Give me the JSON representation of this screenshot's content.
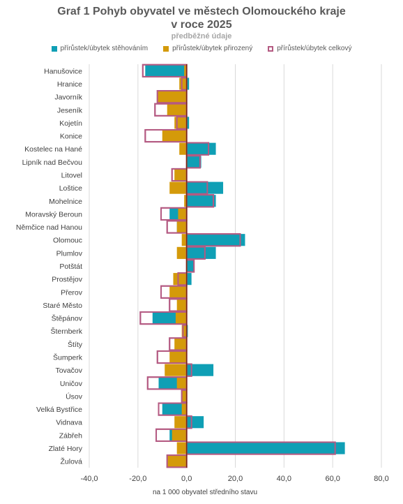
{
  "chart_data": {
    "type": "bar",
    "orientation": "horizontal",
    "title_line1": "Graf 1 Pohyb obyvatel ve městech Olomouckého kraje",
    "title_line2": "v roce 2025",
    "subtitle": "předběžné údaje",
    "xlabel": "na 1 000 obyvatel středního stavu",
    "xlim": [
      -40,
      80
    ],
    "xticks": [
      "-40,0",
      "-20,0",
      "0,0",
      "20,0",
      "40,0",
      "60,0",
      "80,0"
    ],
    "legend_position": "top",
    "grid": true,
    "categories": [
      "Hanušovice",
      "Hranice",
      "Javorník",
      "Jeseník",
      "Kojetín",
      "Konice",
      "Kostelec na Hané",
      "Lipník nad Bečvou",
      "Litovel",
      "Loštice",
      "Mohelnice",
      "Moravský Beroun",
      "Němčice nad Hanou",
      "Olomouc",
      "Plumlov",
      "Potštát",
      "Prostějov",
      "Přerov",
      "Staré Město",
      "Štěpánov",
      "Šternberk",
      "Štíty",
      "Šumperk",
      "Tovačov",
      "Uničov",
      "Úsov",
      "Velká Bystřice",
      "Vidnava",
      "Zábřeh",
      "Zlaté Hory",
      "Žulová"
    ],
    "series": [
      {
        "name": "přírůstek/úbytek stěhováním",
        "color": "#0f9fb5",
        "values": [
          -17,
          1,
          0,
          0,
          1,
          0,
          12,
          6,
          0,
          15,
          12,
          -7,
          -4,
          24,
          12,
          3,
          2,
          0,
          0,
          -14,
          0.5,
          0,
          0,
          11,
          -11.5,
          0,
          -10,
          7,
          -7,
          65,
          0
        ]
      },
      {
        "name": "přírůstek/úbytek přirozený",
        "color": "#d49a0a",
        "values": [
          -1,
          -3,
          -12,
          -8,
          -5,
          -10,
          -3,
          0,
          -5,
          -7,
          -1,
          -3.5,
          -4,
          -2,
          -4,
          0,
          -5.5,
          -7,
          -4,
          -4.5,
          -2,
          -5,
          -7,
          -9,
          -4,
          -2,
          -2,
          -5,
          -6,
          -4,
          -8
        ]
      },
      {
        "name": "přírůstek/úbytek celkový",
        "color": "#b45a82",
        "values": [
          -18,
          -2,
          -12,
          -13,
          -4,
          -17,
          9,
          5.5,
          -6,
          8.5,
          11,
          -10.5,
          -8,
          22,
          7.5,
          3,
          -3.5,
          -10.5,
          -7,
          -19,
          -1.5,
          -7,
          -12,
          2,
          -16,
          -2,
          -11.5,
          2,
          -12.5,
          61,
          -8
        ]
      }
    ]
  }
}
